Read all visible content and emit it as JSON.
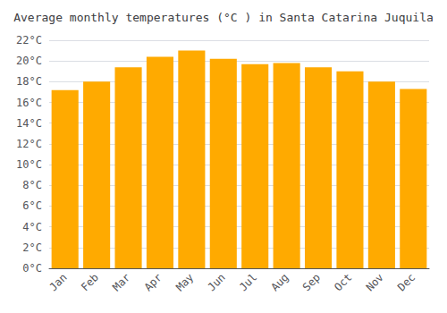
{
  "chart_data": {
    "type": "bar",
    "title": "Average monthly temperatures (°C ) in Santa Catarina Juquila",
    "categories": [
      "Jan",
      "Feb",
      "Mar",
      "Apr",
      "May",
      "Jun",
      "Jul",
      "Aug",
      "Sep",
      "Oct",
      "Nov",
      "Dec"
    ],
    "values": [
      17.2,
      18.0,
      19.4,
      20.4,
      21.0,
      20.2,
      19.7,
      19.8,
      19.4,
      19.0,
      18.0,
      17.3
    ],
    "color": "#FFAA00",
    "ylim": [
      0,
      22
    ],
    "yticks": [
      {
        "value": 0,
        "label": "0°C"
      },
      {
        "value": 2,
        "label": "2°C"
      },
      {
        "value": 4,
        "label": "4°C"
      },
      {
        "value": 6,
        "label": "6°C"
      },
      {
        "value": 8,
        "label": "8°C"
      },
      {
        "value": 10,
        "label": "10°C"
      },
      {
        "value": 12,
        "label": "12°C"
      },
      {
        "value": 14,
        "label": "14°C"
      },
      {
        "value": 16,
        "label": "16°C"
      },
      {
        "value": 18,
        "label": "18°C"
      },
      {
        "value": 20,
        "label": "20°C"
      },
      {
        "value": 22,
        "label": "22°C"
      }
    ],
    "grid": true
  }
}
